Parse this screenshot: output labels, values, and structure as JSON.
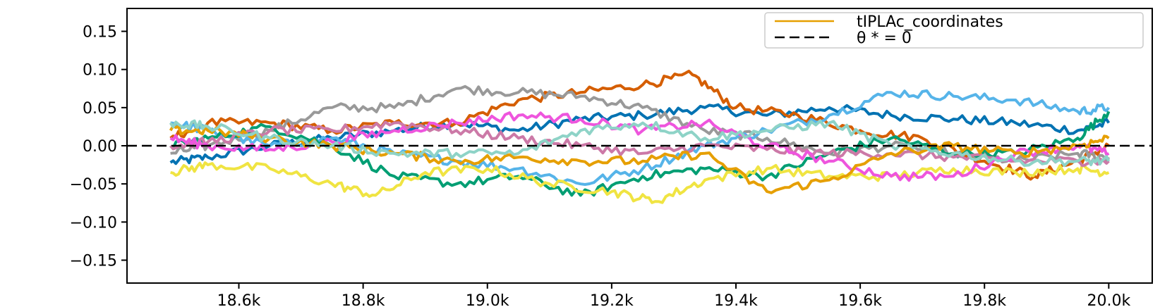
{
  "chart_data": {
    "type": "line",
    "title": "",
    "xlabel": "",
    "ylabel": "",
    "xlim": [
      18420,
      20070
    ],
    "ylim": [
      -0.18,
      0.18
    ],
    "x_ticks": [
      18600,
      18800,
      19000,
      19200,
      19400,
      19600,
      19800,
      20000
    ],
    "x_tick_labels": [
      "18.6k",
      "18.8k",
      "19.0k",
      "19.2k",
      "19.4k",
      "19.6k",
      "19.8k",
      "20.0k"
    ],
    "y_ticks": [
      0.15,
      0.1,
      0.05,
      0.0,
      -0.05,
      -0.1,
      -0.15
    ],
    "y_tick_labels": [
      "0.15",
      "0.10",
      "0.05",
      "0.00",
      "−0.05",
      "−0.10",
      "−0.15"
    ],
    "legend_position": "top-right",
    "legend": [
      {
        "label": "tIPLAc_coordinates",
        "color": "#E69F00",
        "style": "solid"
      },
      {
        "label": "θ * = 0",
        "color": "#000000",
        "style": "dashed"
      }
    ],
    "reference_line": {
      "y": 0,
      "color": "#000000",
      "style": "dashed"
    },
    "series": [
      {
        "color": "#0072B2",
        "values": [
          [
            18490,
            -0.022
          ],
          [
            18550,
            -0.015
          ],
          [
            18650,
            0.0
          ],
          [
            18750,
            0.01
          ],
          [
            18850,
            0.02
          ],
          [
            18950,
            0.03
          ],
          [
            19050,
            0.02
          ],
          [
            19150,
            0.035
          ],
          [
            19250,
            0.04
          ],
          [
            19350,
            0.05
          ],
          [
            19450,
            0.04
          ],
          [
            19550,
            0.05
          ],
          [
            19650,
            0.04
          ],
          [
            19750,
            0.035
          ],
          [
            19850,
            0.03
          ],
          [
            19950,
            0.02
          ],
          [
            20000,
            0.03
          ]
        ]
      },
      {
        "color": "#D55E00",
        "values": [
          [
            18490,
            0.01
          ],
          [
            18550,
            0.03
          ],
          [
            18650,
            0.03
          ],
          [
            18750,
            0.02
          ],
          [
            18850,
            0.03
          ],
          [
            18950,
            0.03
          ],
          [
            19050,
            0.06
          ],
          [
            19150,
            0.07
          ],
          [
            19250,
            0.08
          ],
          [
            19330,
            0.093
          ],
          [
            19400,
            0.05
          ],
          [
            19500,
            0.04
          ],
          [
            19600,
            0.02
          ],
          [
            19700,
            0.01
          ],
          [
            19800,
            -0.02
          ],
          [
            19880,
            -0.04
          ],
          [
            19950,
            -0.02
          ],
          [
            20000,
            0.0
          ]
        ]
      },
      {
        "color": "#999999",
        "values": [
          [
            18490,
            -0.01
          ],
          [
            18550,
            0.0
          ],
          [
            18650,
            0.02
          ],
          [
            18750,
            0.05
          ],
          [
            18850,
            0.05
          ],
          [
            18950,
            0.075
          ],
          [
            19050,
            0.07
          ],
          [
            19150,
            0.065
          ],
          [
            19250,
            0.05
          ],
          [
            19350,
            0.02
          ],
          [
            19450,
            0.01
          ],
          [
            19550,
            -0.01
          ],
          [
            19650,
            0.0
          ],
          [
            19750,
            -0.01
          ],
          [
            19850,
            -0.02
          ],
          [
            19950,
            -0.01
          ],
          [
            20000,
            -0.015
          ]
        ]
      },
      {
        "color": "#56B4E9",
        "values": [
          [
            18490,
            0.03
          ],
          [
            18550,
            0.02
          ],
          [
            18650,
            0.0
          ],
          [
            18750,
            0.01
          ],
          [
            18850,
            -0.01
          ],
          [
            18950,
            -0.02
          ],
          [
            19050,
            -0.03
          ],
          [
            19150,
            -0.05
          ],
          [
            19250,
            -0.03
          ],
          [
            19350,
            0.0
          ],
          [
            19450,
            0.02
          ],
          [
            19550,
            0.04
          ],
          [
            19650,
            0.07
          ],
          [
            19750,
            0.065
          ],
          [
            19850,
            0.06
          ],
          [
            19950,
            0.045
          ],
          [
            20000,
            0.05
          ]
        ]
      },
      {
        "color": "#009E73",
        "values": [
          [
            18490,
            0.0
          ],
          [
            18550,
            0.01
          ],
          [
            18650,
            0.025
          ],
          [
            18750,
            0.0
          ],
          [
            18850,
            -0.04
          ],
          [
            18950,
            -0.05
          ],
          [
            19050,
            -0.04
          ],
          [
            19150,
            -0.065
          ],
          [
            19250,
            -0.04
          ],
          [
            19350,
            -0.03
          ],
          [
            19450,
            -0.04
          ],
          [
            19550,
            -0.01
          ],
          [
            19650,
            0.01
          ],
          [
            19750,
            -0.01
          ],
          [
            19850,
            -0.01
          ],
          [
            19950,
            0.01
          ],
          [
            20000,
            0.045
          ]
        ]
      },
      {
        "color": "#F0E442",
        "values": [
          [
            18490,
            -0.035
          ],
          [
            18550,
            -0.025
          ],
          [
            18650,
            -0.03
          ],
          [
            18750,
            -0.05
          ],
          [
            18820,
            -0.065
          ],
          [
            18900,
            -0.035
          ],
          [
            19000,
            -0.03
          ],
          [
            19100,
            -0.05
          ],
          [
            19200,
            -0.06
          ],
          [
            19270,
            -0.073
          ],
          [
            19350,
            -0.045
          ],
          [
            19450,
            -0.03
          ],
          [
            19550,
            -0.04
          ],
          [
            19650,
            -0.04
          ],
          [
            19750,
            -0.03
          ],
          [
            19850,
            -0.035
          ],
          [
            19950,
            -0.03
          ],
          [
            20000,
            -0.035
          ]
        ]
      },
      {
        "color": "#CC79A7",
        "values": [
          [
            18490,
            0.0
          ],
          [
            18550,
            0.005
          ],
          [
            18650,
            0.02
          ],
          [
            18750,
            0.02
          ],
          [
            18850,
            0.03
          ],
          [
            18950,
            0.02
          ],
          [
            19050,
            0.01
          ],
          [
            19150,
            0.0
          ],
          [
            19250,
            -0.01
          ],
          [
            19350,
            0.0
          ],
          [
            19450,
            -0.005
          ],
          [
            19550,
            -0.01
          ],
          [
            19650,
            -0.01
          ],
          [
            19750,
            -0.015
          ],
          [
            19850,
            -0.02
          ],
          [
            19950,
            -0.02
          ],
          [
            20000,
            -0.02
          ]
        ]
      },
      {
        "color": "#EE55DD",
        "values": [
          [
            18490,
            0.01
          ],
          [
            18550,
            0.0
          ],
          [
            18650,
            -0.005
          ],
          [
            18750,
            0.005
          ],
          [
            18850,
            0.02
          ],
          [
            18950,
            0.03
          ],
          [
            19050,
            0.04
          ],
          [
            19150,
            0.035
          ],
          [
            19250,
            0.02
          ],
          [
            19350,
            0.03
          ],
          [
            19450,
            0.0
          ],
          [
            19550,
            -0.02
          ],
          [
            19650,
            -0.04
          ],
          [
            19750,
            -0.04
          ],
          [
            19850,
            -0.01
          ],
          [
            19950,
            0.0
          ],
          [
            20000,
            -0.01
          ]
        ]
      },
      {
        "color": "#E69F00",
        "values": [
          [
            18490,
            0.02
          ],
          [
            18550,
            0.02
          ],
          [
            18650,
            0.01
          ],
          [
            18750,
            0.0
          ],
          [
            18850,
            -0.01
          ],
          [
            18950,
            -0.02
          ],
          [
            19050,
            -0.015
          ],
          [
            19150,
            -0.02
          ],
          [
            19250,
            -0.02
          ],
          [
            19350,
            -0.01
          ],
          [
            19450,
            -0.06
          ],
          [
            19550,
            -0.045
          ],
          [
            19650,
            -0.01
          ],
          [
            19750,
            0.0
          ],
          [
            19850,
            -0.01
          ],
          [
            19950,
            0.0
          ],
          [
            20000,
            0.01
          ]
        ]
      },
      {
        "color": "#8ED3C7",
        "values": [
          [
            18490,
            0.03
          ],
          [
            18550,
            0.025
          ],
          [
            18650,
            0.01
          ],
          [
            18750,
            0.0
          ],
          [
            18850,
            -0.01
          ],
          [
            18950,
            -0.01
          ],
          [
            19050,
            -0.01
          ],
          [
            19150,
            0.02
          ],
          [
            19250,
            0.03
          ],
          [
            19350,
            0.01
          ],
          [
            19450,
            0.02
          ],
          [
            19550,
            0.03
          ],
          [
            19650,
            0.0
          ],
          [
            19750,
            -0.01
          ],
          [
            19850,
            -0.02
          ],
          [
            19950,
            -0.02
          ],
          [
            20000,
            -0.02
          ]
        ]
      }
    ]
  }
}
